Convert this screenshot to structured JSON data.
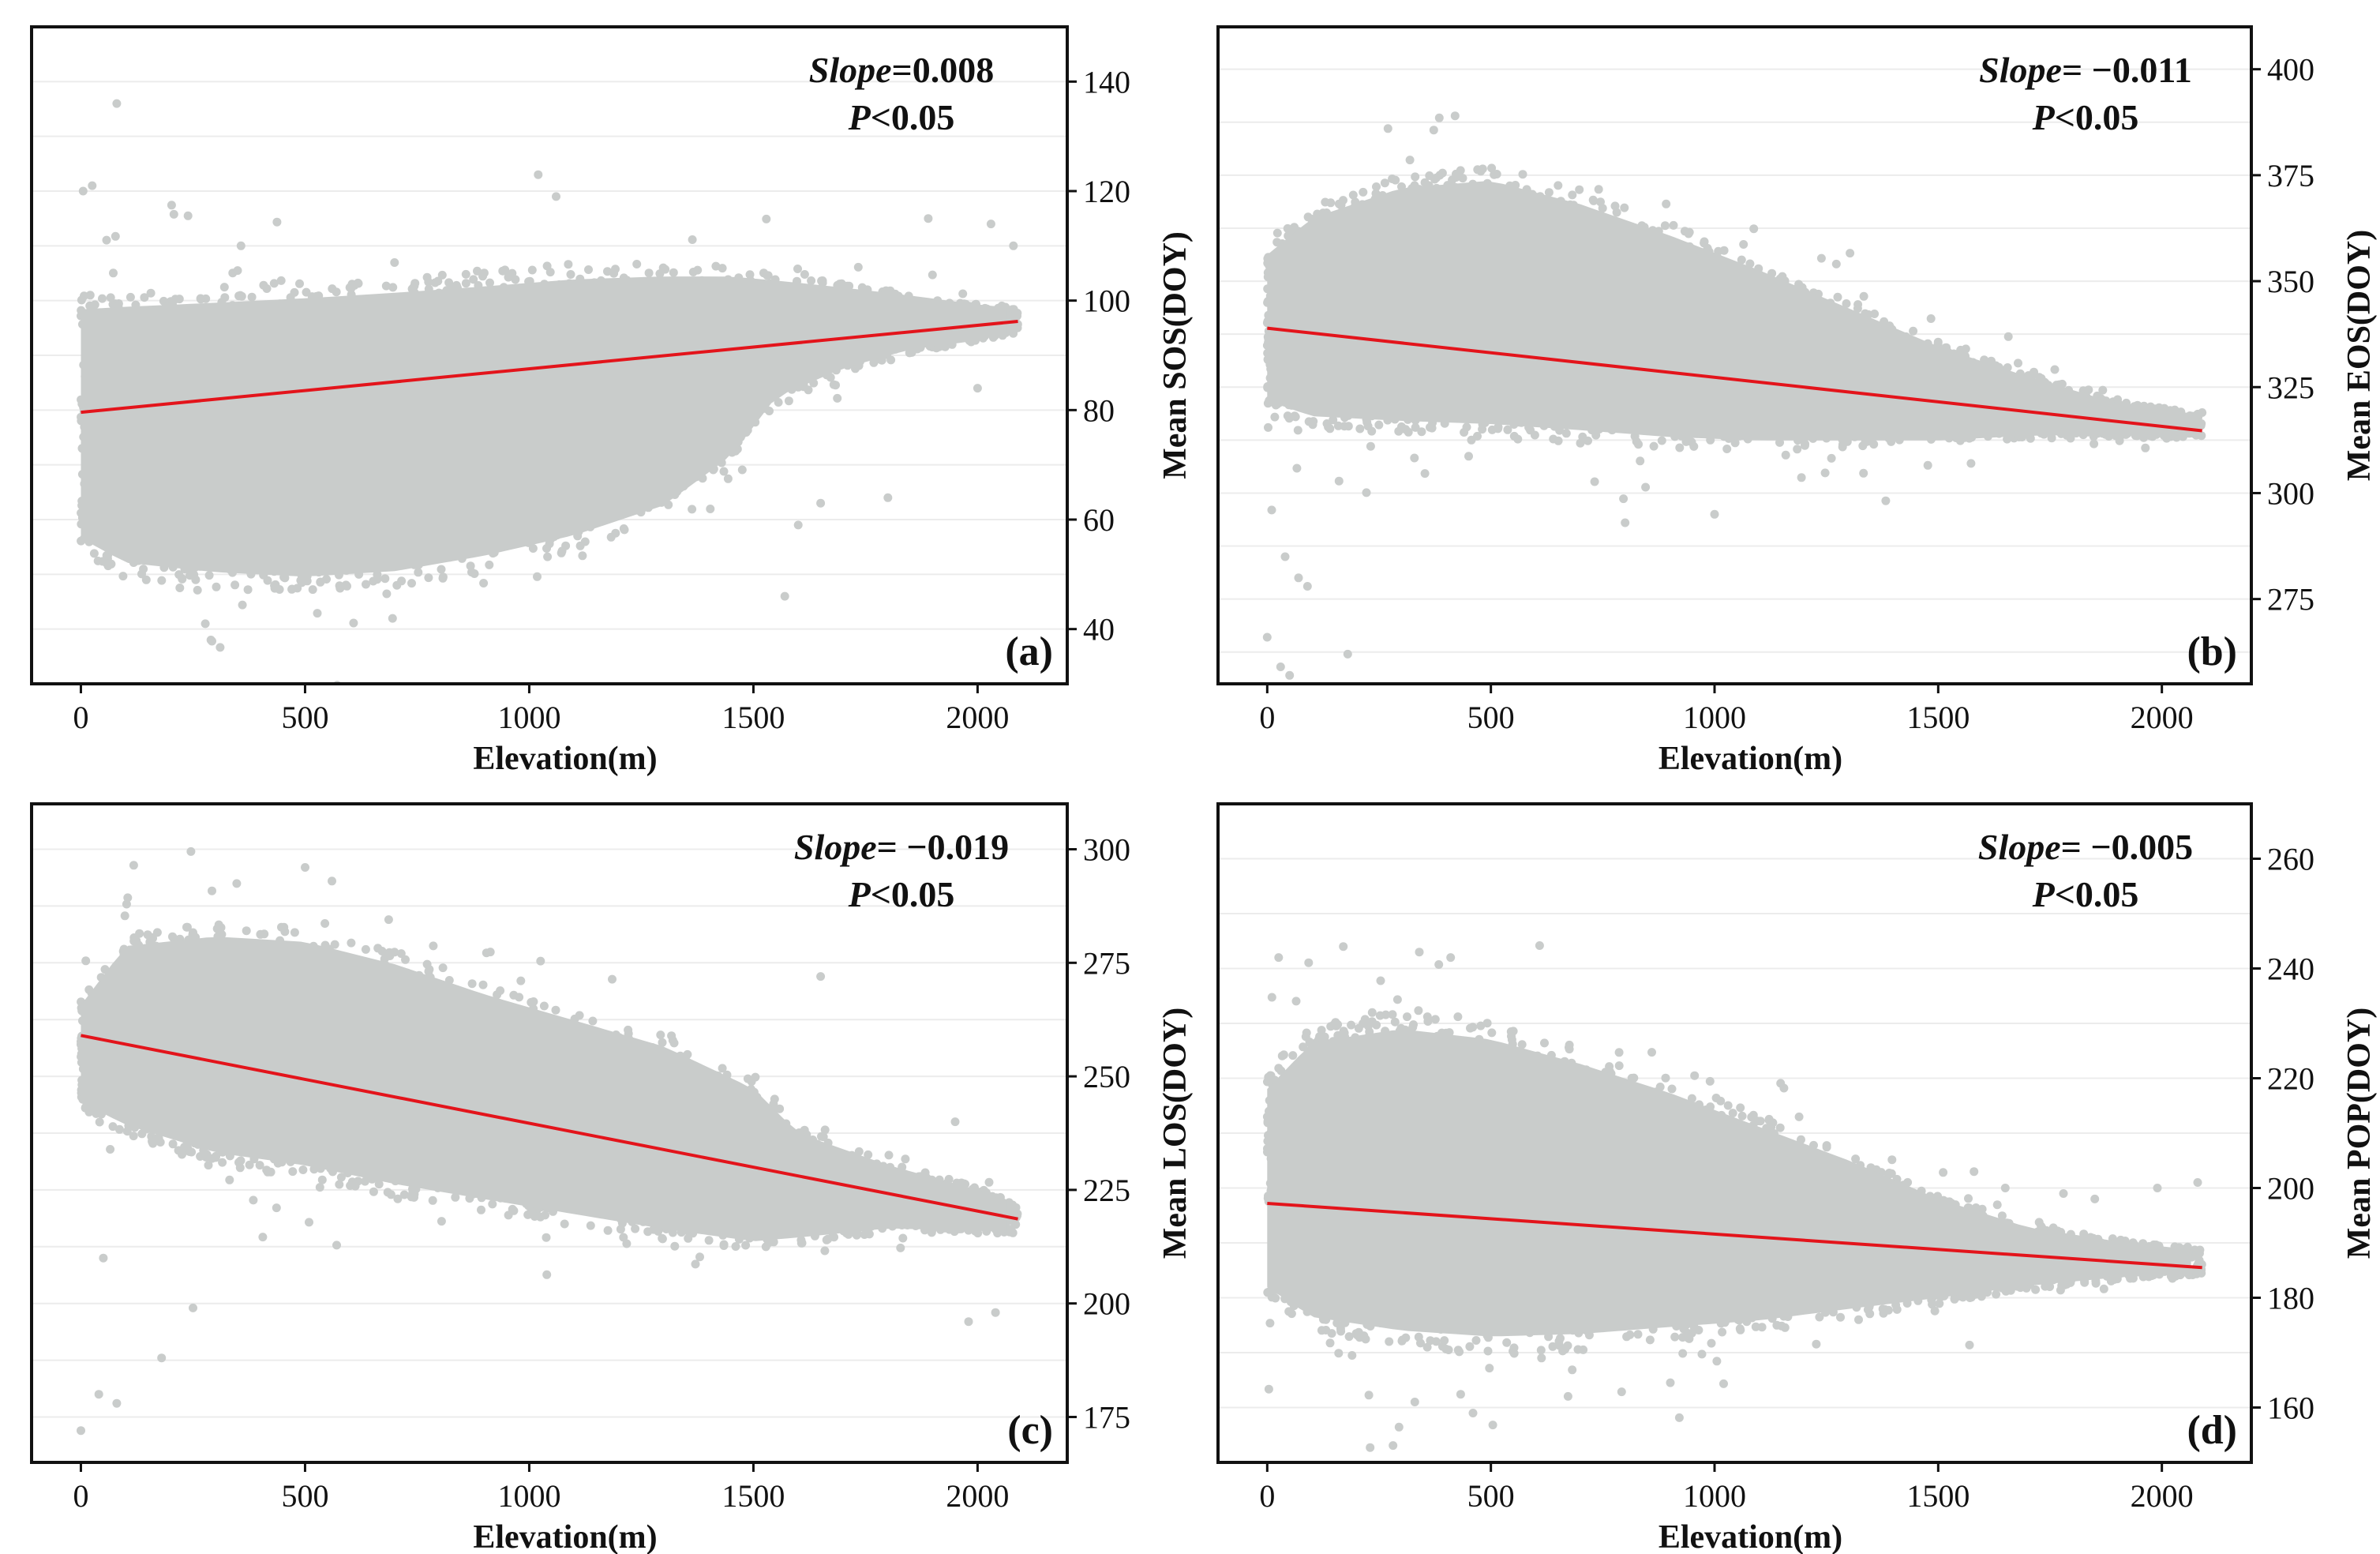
{
  "colors": {
    "scatter": "#c9cccb",
    "fit_line": "#e3141b",
    "frame": "#111111",
    "grid": "#ececec",
    "background": "#ffffff"
  },
  "chart_data": [
    {
      "type": "scatter",
      "panel_label": "(a)",
      "xlabel": "Elevation(m)",
      "ylabel": "Mean SOS(DOY)",
      "xlim": [
        -110,
        2200
      ],
      "ylim": [
        30,
        150
      ],
      "xticks": [
        0,
        500,
        1000,
        1500,
        2000
      ],
      "yticks": [
        40,
        60,
        80,
        100,
        120,
        140
      ],
      "y_axis_side": "right",
      "grid": true,
      "annotation": {
        "slope_label": "Slope",
        "slope_value": "=0.008",
        "p_label": "P",
        "p_value": "<0.05"
      },
      "fit_line": {
        "x": [
          0,
          2090
        ],
        "y": [
          79.6,
          96.2
        ]
      },
      "cloud": [
        {
          "x": 0,
          "lo": 52,
          "hi": 103
        },
        {
          "x": 100,
          "lo": 47,
          "hi": 104
        },
        {
          "x": 300,
          "lo": 45,
          "hi": 105
        },
        {
          "x": 500,
          "lo": 44,
          "hi": 106
        },
        {
          "x": 700,
          "lo": 45,
          "hi": 107
        },
        {
          "x": 900,
          "lo": 48,
          "hi": 108
        },
        {
          "x": 1100,
          "lo": 52,
          "hi": 109
        },
        {
          "x": 1300,
          "lo": 58,
          "hi": 109
        },
        {
          "x": 1450,
          "lo": 68,
          "hi": 108
        },
        {
          "x": 1550,
          "lo": 80,
          "hi": 106
        },
        {
          "x": 1700,
          "lo": 86,
          "hi": 104
        },
        {
          "x": 1850,
          "lo": 90,
          "hi": 102
        },
        {
          "x": 2000,
          "lo": 92,
          "hi": 100
        },
        {
          "x": 2090,
          "lo": 94,
          "hi": 99
        }
      ],
      "outliers": [
        {
          "x": 80,
          "y": 136
        },
        {
          "x": 5,
          "y": 120
        },
        {
          "x": 1020,
          "y": 123
        },
        {
          "x": 1060,
          "y": 119
        },
        {
          "x": 1890,
          "y": 115
        },
        {
          "x": 2030,
          "y": 114
        },
        {
          "x": 2080,
          "y": 110
        },
        {
          "x": 1650,
          "y": 63
        },
        {
          "x": 1600,
          "y": 59
        },
        {
          "x": 1570,
          "y": 46
        },
        {
          "x": 290,
          "y": 38
        },
        {
          "x": 1800,
          "y": 64
        },
        {
          "x": 2000,
          "y": 84
        }
      ]
    },
    {
      "type": "scatter",
      "panel_label": "(b)",
      "xlabel": "Elevation(m)",
      "ylabel": "Mean EOS(DOY)",
      "xlim": [
        -110,
        2200
      ],
      "ylim": [
        255,
        410
      ],
      "xticks": [
        0,
        500,
        1000,
        1500,
        2000
      ],
      "yticks": [
        275,
        300,
        325,
        350,
        375,
        400
      ],
      "y_axis_side": "right",
      "grid": true,
      "annotation": {
        "slope_label": "Slope",
        "slope_value": "= −0.011",
        "p_label": "P",
        "p_value": "<0.05"
      },
      "fit_line": {
        "x": [
          0,
          2090
        ],
        "y": [
          338.9,
          314.7
        ]
      },
      "cloud": [
        {
          "x": 0,
          "lo": 318,
          "hi": 360
        },
        {
          "x": 100,
          "lo": 313,
          "hi": 370
        },
        {
          "x": 300,
          "lo": 311,
          "hi": 378
        },
        {
          "x": 500,
          "lo": 310,
          "hi": 380
        },
        {
          "x": 700,
          "lo": 309,
          "hi": 374
        },
        {
          "x": 900,
          "lo": 308,
          "hi": 366
        },
        {
          "x": 1100,
          "lo": 308,
          "hi": 357
        },
        {
          "x": 1300,
          "lo": 309,
          "hi": 347
        },
        {
          "x": 1500,
          "lo": 310,
          "hi": 337
        },
        {
          "x": 1700,
          "lo": 312,
          "hi": 329
        },
        {
          "x": 1900,
          "lo": 313,
          "hi": 322
        },
        {
          "x": 2090,
          "lo": 313,
          "hi": 319
        }
      ],
      "outliers": [
        {
          "x": 10,
          "y": 296
        },
        {
          "x": 40,
          "y": 285
        },
        {
          "x": 70,
          "y": 280
        },
        {
          "x": 90,
          "y": 278
        },
        {
          "x": 0,
          "y": 266
        },
        {
          "x": 30,
          "y": 259
        },
        {
          "x": 50,
          "y": 257
        },
        {
          "x": 180,
          "y": 262
        },
        {
          "x": 420,
          "y": 389
        },
        {
          "x": 270,
          "y": 386
        },
        {
          "x": 800,
          "y": 293
        },
        {
          "x": 1000,
          "y": 295
        },
        {
          "x": 2090,
          "y": 319
        }
      ]
    },
    {
      "type": "scatter",
      "panel_label": "(c)",
      "xlabel": "Elevation(m)",
      "ylabel": "Mean LOS(DOY)",
      "xlim": [
        -110,
        2200
      ],
      "ylim": [
        165,
        310
      ],
      "xticks": [
        0,
        500,
        1000,
        1500,
        2000
      ],
      "yticks": [
        175,
        200,
        225,
        250,
        275,
        300
      ],
      "y_axis_side": "right",
      "grid": true,
      "annotation": {
        "slope_label": "Slope",
        "slope_value": "= −0.019",
        "p_label": "P",
        "p_value": "<0.05"
      },
      "fit_line": {
        "x": [
          0,
          2090
        ],
        "y": [
          259.0,
          218.6
        ]
      },
      "cloud": [
        {
          "x": 0,
          "lo": 242,
          "hi": 268
        },
        {
          "x": 100,
          "lo": 235,
          "hi": 283
        },
        {
          "x": 300,
          "lo": 228,
          "hi": 286
        },
        {
          "x": 500,
          "lo": 225,
          "hi": 285
        },
        {
          "x": 700,
          "lo": 221,
          "hi": 280
        },
        {
          "x": 900,
          "lo": 218,
          "hi": 273
        },
        {
          "x": 1100,
          "lo": 215,
          "hi": 267
        },
        {
          "x": 1300,
          "lo": 212,
          "hi": 261
        },
        {
          "x": 1500,
          "lo": 210,
          "hi": 251
        },
        {
          "x": 1600,
          "lo": 212,
          "hi": 240
        },
        {
          "x": 1800,
          "lo": 215,
          "hi": 232
        },
        {
          "x": 2000,
          "lo": 215,
          "hi": 226
        },
        {
          "x": 2090,
          "lo": 215,
          "hi": 222
        }
      ],
      "outliers": [
        {
          "x": 0,
          "y": 172
        },
        {
          "x": 40,
          "y": 180
        },
        {
          "x": 80,
          "y": 178
        },
        {
          "x": 180,
          "y": 188
        },
        {
          "x": 50,
          "y": 210
        },
        {
          "x": 250,
          "y": 199
        },
        {
          "x": 500,
          "y": 296
        },
        {
          "x": 560,
          "y": 293
        },
        {
          "x": 1950,
          "y": 240
        },
        {
          "x": 2040,
          "y": 198
        },
        {
          "x": 1980,
          "y": 196
        },
        {
          "x": 1650,
          "y": 272
        }
      ]
    },
    {
      "type": "scatter",
      "panel_label": "(d)",
      "xlabel": "Elevation(m)",
      "ylabel": "Mean POP(DOY)",
      "xlim": [
        -110,
        2200
      ],
      "ylim": [
        150,
        270
      ],
      "xticks": [
        0,
        500,
        1000,
        1500,
        2000
      ],
      "yticks": [
        160,
        180,
        200,
        220,
        240,
        260
      ],
      "y_axis_side": "right",
      "grid": true,
      "annotation": {
        "slope_label": "Slope",
        "slope_value": "= −0.005",
        "p_label": "P",
        "p_value": "<0.05"
      },
      "fit_line": {
        "x": [
          0,
          2090
        ],
        "y": [
          197.2,
          185.5
        ]
      },
      "cloud": [
        {
          "x": 0,
          "lo": 178,
          "hi": 222
        },
        {
          "x": 100,
          "lo": 171,
          "hi": 232
        },
        {
          "x": 300,
          "lo": 168,
          "hi": 235
        },
        {
          "x": 500,
          "lo": 167,
          "hi": 233
        },
        {
          "x": 700,
          "lo": 168,
          "hi": 228
        },
        {
          "x": 900,
          "lo": 170,
          "hi": 222
        },
        {
          "x": 1100,
          "lo": 172,
          "hi": 215
        },
        {
          "x": 1300,
          "lo": 175,
          "hi": 208
        },
        {
          "x": 1500,
          "lo": 178,
          "hi": 200
        },
        {
          "x": 1700,
          "lo": 181,
          "hi": 194
        },
        {
          "x": 1900,
          "lo": 183,
          "hi": 191
        },
        {
          "x": 2090,
          "lo": 184,
          "hi": 189
        }
      ],
      "outliers": [
        {
          "x": 170,
          "y": 244
        },
        {
          "x": 340,
          "y": 243
        },
        {
          "x": 410,
          "y": 242
        },
        {
          "x": 460,
          "y": 159
        },
        {
          "x": 330,
          "y": 161
        },
        {
          "x": 2080,
          "y": 201
        },
        {
          "x": 1990,
          "y": 200
        },
        {
          "x": 1850,
          "y": 198
        },
        {
          "x": 1780,
          "y": 199
        },
        {
          "x": 1650,
          "y": 200
        },
        {
          "x": 1580,
          "y": 203
        }
      ]
    }
  ]
}
